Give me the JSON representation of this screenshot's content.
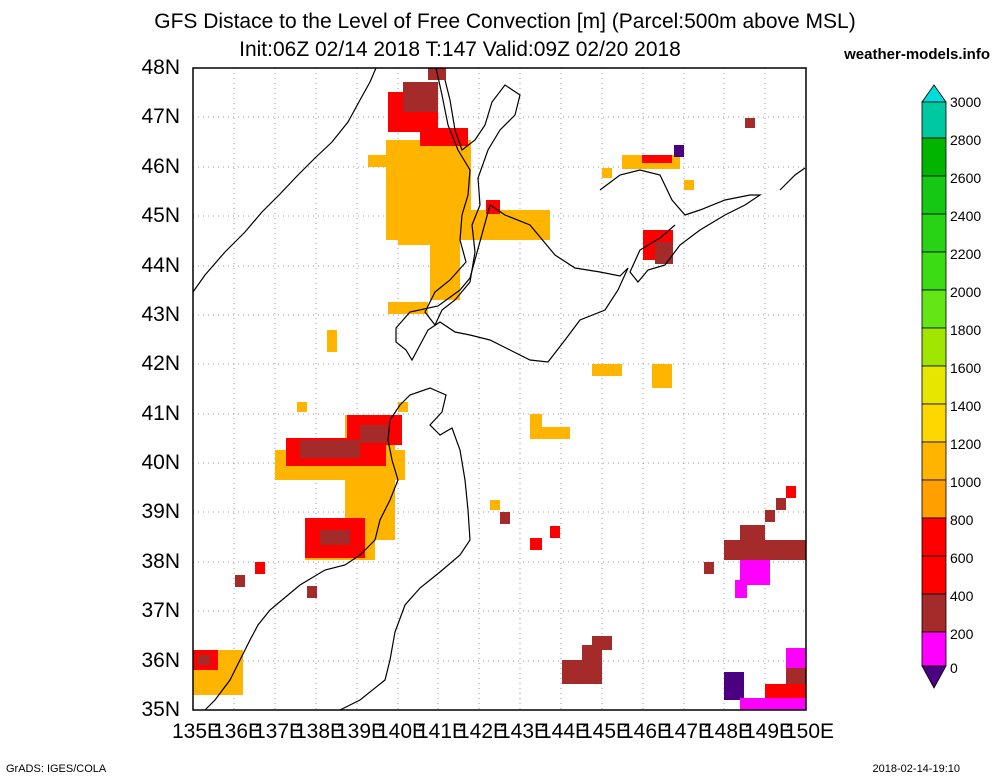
{
  "header": {
    "title_line1": "GFS Distace to the Level of Free Convection [m] (Parcel:500m above MSL)",
    "title_line2": "Init:06Z 02/14 2018 T:147 Valid:09Z 02/20 2018",
    "site": "weather-models.info"
  },
  "axes": {
    "lat_labels": [
      "48N",
      "47N",
      "46N",
      "45N",
      "44N",
      "43N",
      "42N",
      "41N",
      "40N",
      "39N",
      "38N",
      "37N",
      "36N",
      "35N"
    ],
    "lon_labels": [
      "135E",
      "136E",
      "137E",
      "138E",
      "139E",
      "140E",
      "141E",
      "142E",
      "143E",
      "144E",
      "145E",
      "146E",
      "147E",
      "148E",
      "149E",
      "150E"
    ]
  },
  "colorbar": {
    "labels": [
      "3000",
      "2800",
      "2600",
      "2400",
      "2200",
      "2000",
      "1800",
      "1600",
      "1400",
      "1200",
      "1000",
      "800",
      "600",
      "400",
      "200",
      "0"
    ],
    "colors": [
      "#00dcdc",
      "#00c8a0",
      "#00b400",
      "#14c814",
      "#28d214",
      "#3cdc14",
      "#64e614",
      "#a0e600",
      "#e6e600",
      "#ffd700",
      "#ffb400",
      "#ffa000",
      "#ff0000",
      "#a52a2a",
      "#ff00ff",
      "#4b0082"
    ]
  },
  "footer": {
    "left": "GrADS: IGES/COLA",
    "right": "2018-02-14-19:10"
  }
}
